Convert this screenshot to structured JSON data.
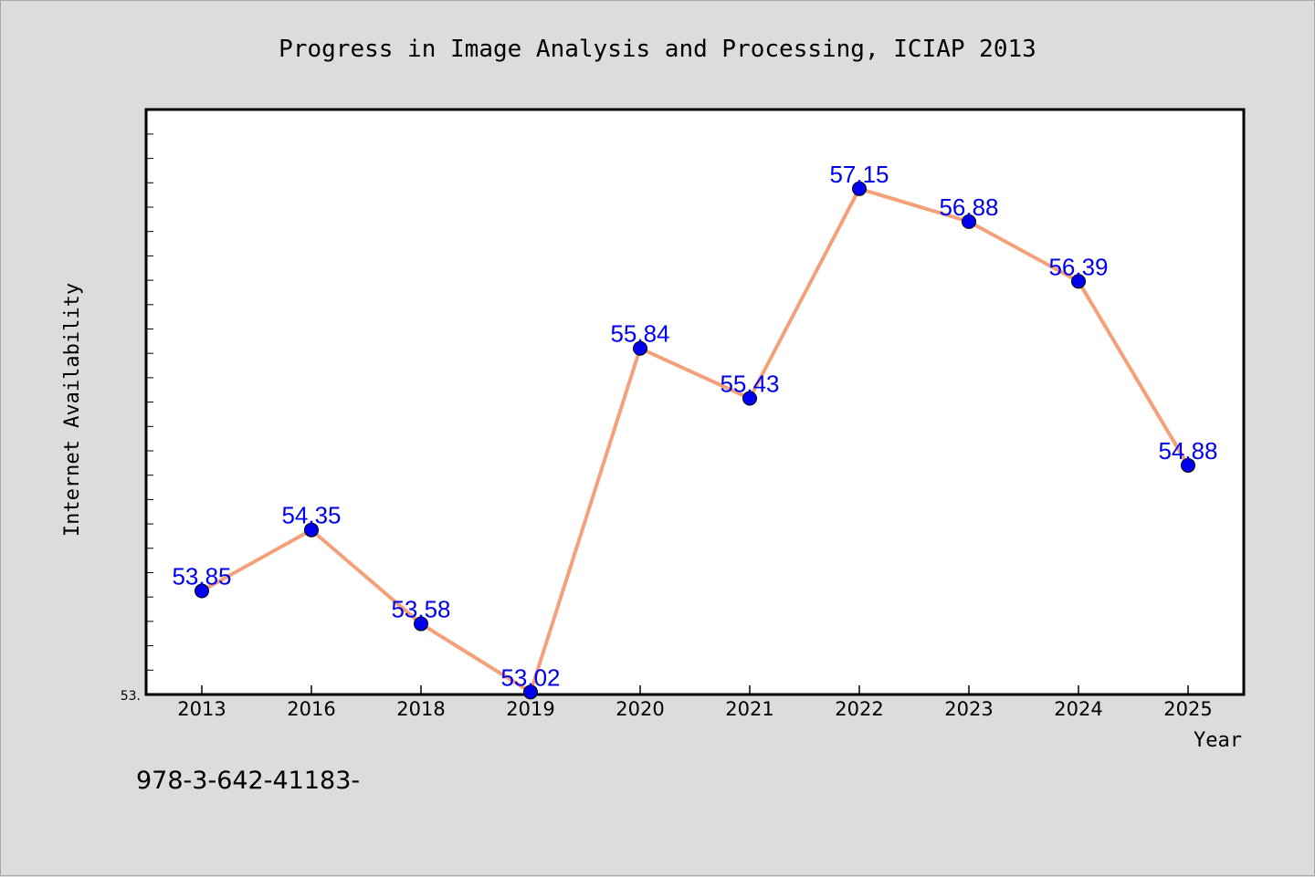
{
  "chart_data": {
    "type": "line",
    "title": "Progress in Image Analysis and Processing, ICIAP 2013",
    "xlabel": "Year",
    "ylabel": "Internet Availability",
    "categories": [
      "2013",
      "2016",
      "2018",
      "2019",
      "2020",
      "2021",
      "2022",
      "2023",
      "2024",
      "2025"
    ],
    "series": [
      {
        "values": [
          53.85,
          54.35,
          53.58,
          53.02,
          55.84,
          55.43,
          57.15,
          56.88,
          56.39,
          54.88
        ],
        "labels": [
          "53.85",
          "54.35",
          "53.58",
          "53.02",
          "55.84",
          "55.43",
          "57.15",
          "56.88",
          "56.39",
          "54.88"
        ],
        "line_color": "#f4a07a",
        "marker_color": "#0000ee",
        "label_color": "#0000ee"
      }
    ],
    "ylim": [
      53.0,
      57.8
    ],
    "y_tick_label": "53.",
    "grid": false,
    "legend": "none"
  },
  "footer": {
    "text": "978-3-642-41183-"
  }
}
